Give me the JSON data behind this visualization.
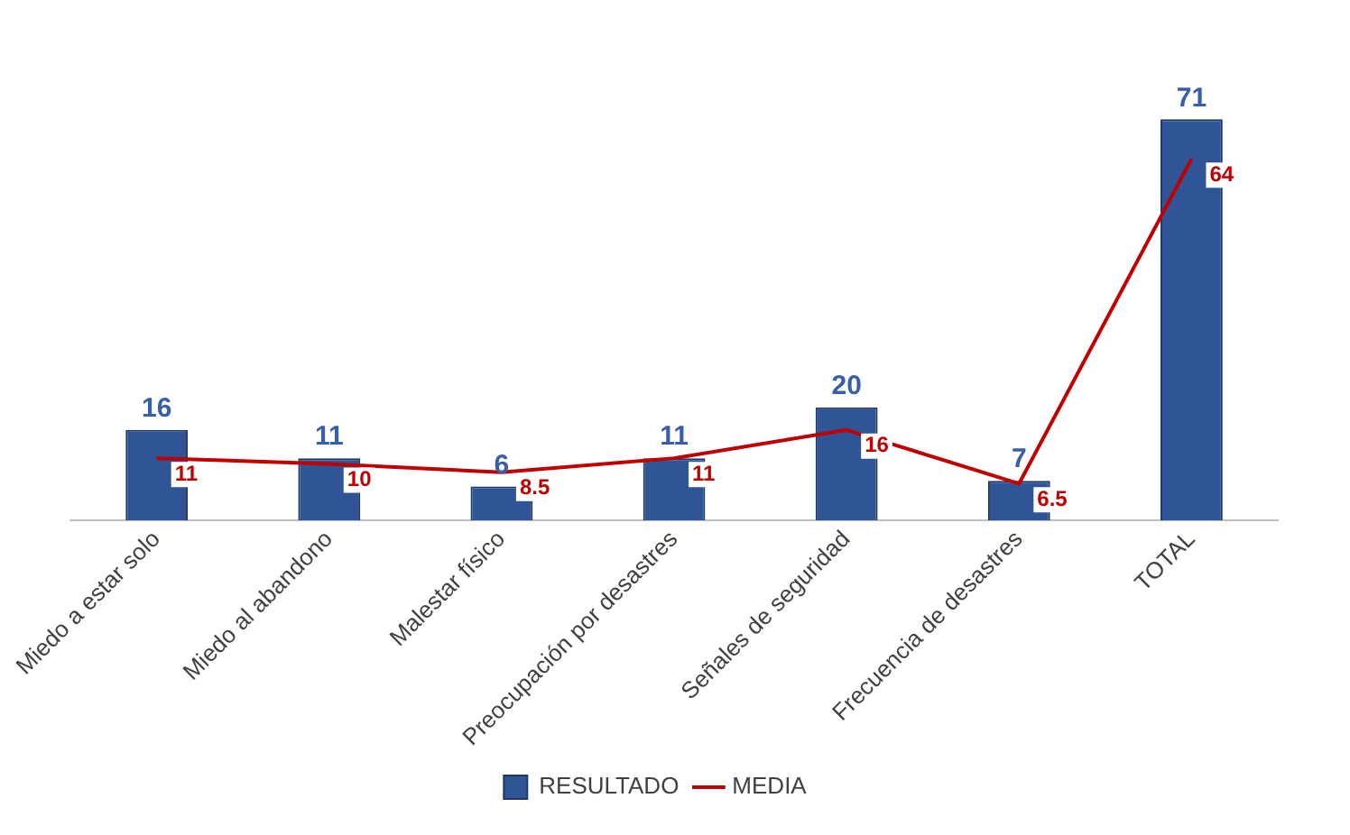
{
  "chart_data": {
    "type": "bar",
    "categories": [
      "Miedo a estar solo",
      "Miedo al abandono",
      "Malestar físico",
      "Preocupación por desastres",
      "Señales de seguridad",
      "Frecuencia de desastres",
      "TOTAL"
    ],
    "series": [
      {
        "name": "RESULTADO",
        "color": "#2f5597",
        "values": [
          16,
          11,
          6,
          11,
          20,
          7,
          71
        ]
      },
      {
        "name": "MEDIA",
        "type": "line",
        "color": "#c00000",
        "values": [
          11,
          10,
          8.5,
          11,
          16,
          6.5,
          64
        ]
      }
    ],
    "data_labels": true,
    "legend": "bottom",
    "marker": "none",
    "grid": false
  }
}
